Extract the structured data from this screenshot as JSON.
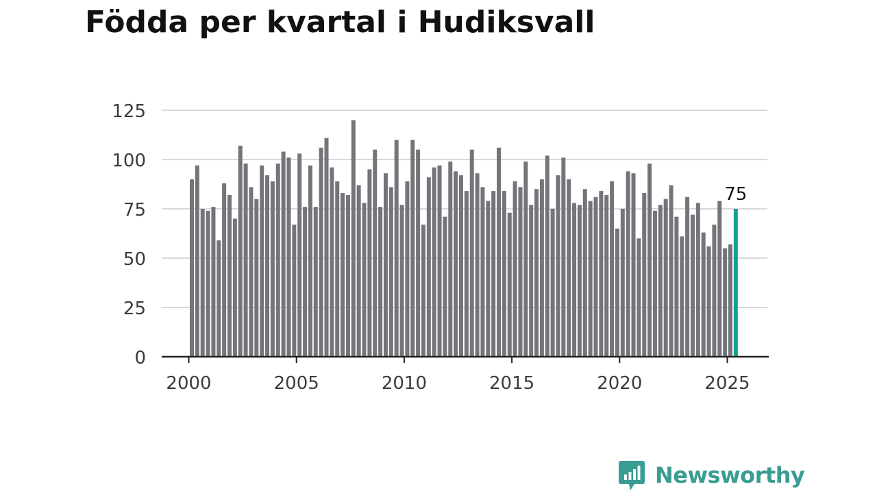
{
  "title": "Födda per kvartal i Hudiksvall",
  "brand": {
    "name": "Newsworthy",
    "icon": "newsworthy-logo-icon",
    "color": "#3a9d93"
  },
  "chart_data": {
    "type": "bar",
    "title": "Födda per kvartal i Hudiksvall",
    "xlabel": "",
    "ylabel": "",
    "ylim": [
      0,
      125
    ],
    "yticks": [
      0,
      25,
      50,
      75,
      100,
      125
    ],
    "xlim": [
      2000,
      2025
    ],
    "xticks": [
      2000,
      2005,
      2010,
      2015,
      2020,
      2025
    ],
    "grid": true,
    "legend": "none",
    "bar_color": "#75747a",
    "highlight_color": "#15a08f",
    "highlight_label": "75",
    "start_period": "2000 Q1",
    "categories": [
      "2000 Q1",
      "2000 Q2",
      "2000 Q3",
      "2000 Q4",
      "2001 Q1",
      "2001 Q2",
      "2001 Q3",
      "2001 Q4",
      "2002 Q1",
      "2002 Q2",
      "2002 Q3",
      "2002 Q4",
      "2003 Q1",
      "2003 Q2",
      "2003 Q3",
      "2003 Q4",
      "2004 Q1",
      "2004 Q2",
      "2004 Q3",
      "2004 Q4",
      "2005 Q1",
      "2005 Q2",
      "2005 Q3",
      "2005 Q4",
      "2006 Q1",
      "2006 Q2",
      "2006 Q3",
      "2006 Q4",
      "2007 Q1",
      "2007 Q2",
      "2007 Q3",
      "2007 Q4",
      "2008 Q1",
      "2008 Q2",
      "2008 Q3",
      "2008 Q4",
      "2009 Q1",
      "2009 Q2",
      "2009 Q3",
      "2009 Q4",
      "2010 Q1",
      "2010 Q2",
      "2010 Q3",
      "2010 Q4",
      "2011 Q1",
      "2011 Q2",
      "2011 Q3",
      "2011 Q4",
      "2012 Q1",
      "2012 Q2",
      "2012 Q3",
      "2012 Q4",
      "2013 Q1",
      "2013 Q2",
      "2013 Q3",
      "2013 Q4",
      "2014 Q1",
      "2014 Q2",
      "2014 Q3",
      "2014 Q4",
      "2015 Q1",
      "2015 Q2",
      "2015 Q3",
      "2015 Q4",
      "2016 Q1",
      "2016 Q2",
      "2016 Q3",
      "2016 Q4",
      "2017 Q1",
      "2017 Q2",
      "2017 Q3",
      "2017 Q4",
      "2018 Q1",
      "2018 Q2",
      "2018 Q3",
      "2018 Q4",
      "2019 Q1",
      "2019 Q2",
      "2019 Q3",
      "2019 Q4",
      "2020 Q1",
      "2020 Q2",
      "2020 Q3",
      "2020 Q4",
      "2021 Q1",
      "2021 Q2",
      "2021 Q3",
      "2021 Q4",
      "2022 Q1",
      "2022 Q2",
      "2022 Q3",
      "2022 Q4",
      "2023 Q1",
      "2023 Q2",
      "2023 Q3",
      "2023 Q4",
      "2024 Q1",
      "2024 Q2",
      "2024 Q3",
      "2024 Q4",
      "2025 Q1",
      "2025 Q2"
    ],
    "values": [
      90,
      97,
      75,
      74,
      76,
      59,
      88,
      82,
      70,
      107,
      98,
      86,
      80,
      97,
      92,
      89,
      98,
      104,
      101,
      67,
      103,
      76,
      97,
      76,
      106,
      111,
      96,
      89,
      83,
      82,
      120,
      87,
      78,
      95,
      105,
      76,
      93,
      86,
      110,
      77,
      89,
      110,
      105,
      67,
      91,
      96,
      97,
      71,
      99,
      94,
      92,
      84,
      105,
      93,
      86,
      79,
      84,
      106,
      84,
      73,
      89,
      86,
      99,
      77,
      85,
      90,
      102,
      75,
      92,
      101,
      90,
      78,
      77,
      85,
      79,
      81,
      84,
      82,
      89,
      65,
      75,
      94,
      93,
      60,
      83,
      98,
      74,
      77,
      80,
      87,
      71,
      61,
      81,
      72,
      78,
      63,
      56,
      67,
      79,
      55,
      57,
      75
    ]
  }
}
